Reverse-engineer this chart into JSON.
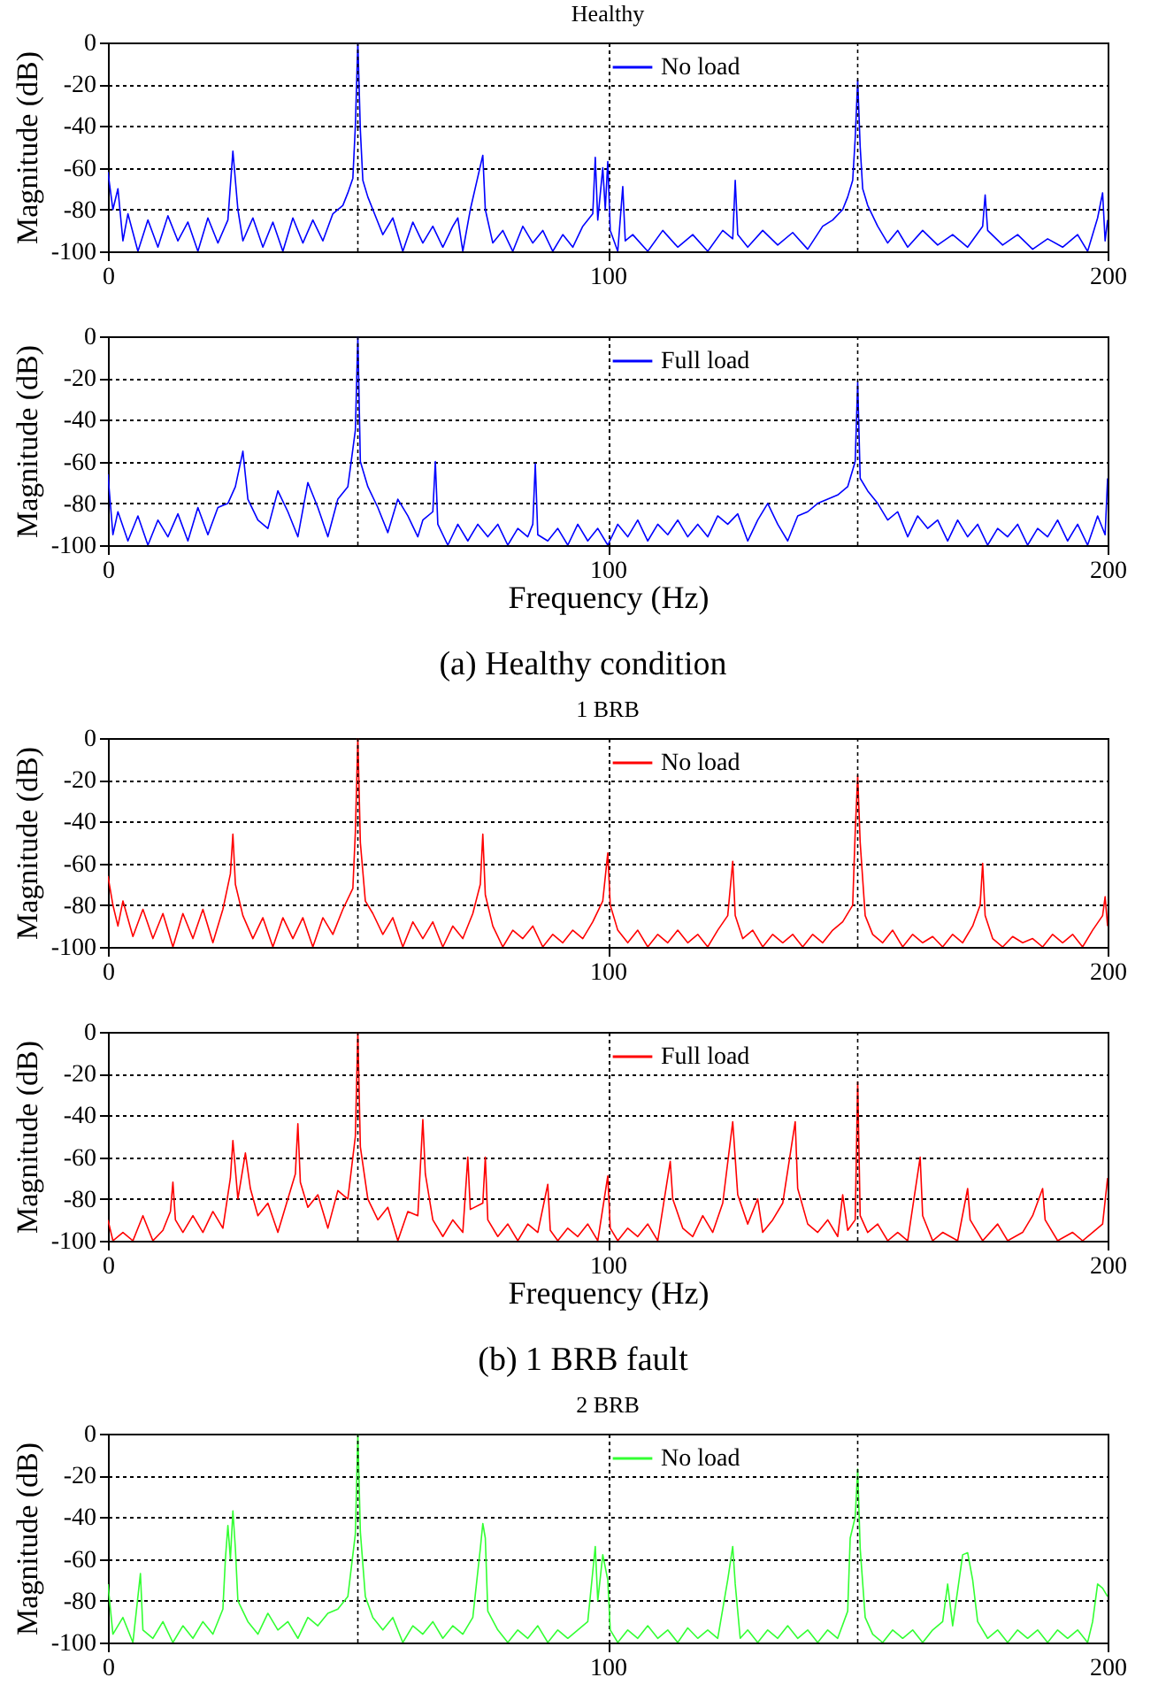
{
  "chart_data": [
    {
      "type": "line",
      "title": "Healthy",
      "ylabel": "Magnitude (dB)",
      "xlim": [
        0,
        200
      ],
      "xticks": [
        0,
        100,
        200
      ],
      "ylim": [
        -100,
        0
      ],
      "yticks": [
        -100,
        -80,
        -60,
        -40,
        -20,
        0
      ],
      "grid": true,
      "legend": "top",
      "ref_lines": [
        {
          "axis": "x",
          "value": 50,
          "line_style": "dotted"
        },
        {
          "axis": "x",
          "value": 150,
          "line_style": "dotted"
        }
      ],
      "series": [
        {
          "name": "No load",
          "color": "#0000ff",
          "x": [
            0,
            1,
            2,
            3,
            4,
            6,
            8,
            10,
            12,
            14,
            16,
            18,
            20,
            22,
            24,
            25,
            26,
            27,
            29,
            31,
            33,
            35,
            37,
            39,
            41,
            43,
            45,
            47,
            48,
            49,
            49.5,
            50,
            50.5,
            51,
            52,
            53,
            55,
            57,
            59,
            61,
            63,
            65,
            67,
            69,
            70,
            71,
            72.5,
            75,
            75.5,
            77,
            79,
            81,
            83,
            85,
            87,
            89,
            91,
            93,
            95,
            97,
            97.5,
            98,
            99,
            99.5,
            100,
            100.5,
            102,
            103,
            103.5,
            105,
            108,
            111,
            114,
            117,
            120,
            123,
            125,
            125.5,
            126,
            128,
            131,
            134,
            137,
            140,
            143,
            145,
            147,
            148,
            149,
            149.5,
            150,
            150.5,
            151,
            152,
            154,
            156,
            158,
            160,
            163,
            166,
            169,
            172,
            175,
            175.5,
            176,
            179,
            182,
            185,
            188,
            191,
            194,
            196,
            198,
            199,
            199.5,
            200
          ],
          "values": [
            -62,
            -80,
            -70,
            -95,
            -82,
            -100,
            -85,
            -98,
            -83,
            -95,
            -86,
            -100,
            -84,
            -96,
            -85,
            -52,
            -80,
            -95,
            -84,
            -98,
            -86,
            -100,
            -84,
            -96,
            -85,
            -95,
            -82,
            -78,
            -72,
            -65,
            -40,
            0,
            -42,
            -66,
            -74,
            -80,
            -92,
            -84,
            -100,
            -86,
            -96,
            -88,
            -98,
            -88,
            -84,
            -100,
            -80,
            -54,
            -80,
            -96,
            -90,
            -100,
            -88,
            -96,
            -90,
            -100,
            -92,
            -98,
            -88,
            -82,
            -55,
            -85,
            -60,
            -80,
            -57,
            -90,
            -100,
            -69,
            -95,
            -92,
            -100,
            -90,
            -98,
            -92,
            -100,
            -90,
            -94,
            -66,
            -92,
            -98,
            -90,
            -97,
            -91,
            -99,
            -88,
            -85,
            -80,
            -74,
            -66,
            -46,
            -18,
            -50,
            -70,
            -78,
            -88,
            -96,
            -90,
            -98,
            -90,
            -97,
            -92,
            -98,
            -88,
            -73,
            -90,
            -97,
            -92,
            -99,
            -94,
            -98,
            -92,
            -100,
            -84,
            -72,
            -95,
            -85
          ]
        }
      ]
    },
    {
      "type": "line",
      "xlabel": "Frequency (Hz)",
      "ylabel": "Magnitude (dB)",
      "xlim": [
        0,
        200
      ],
      "xticks": [
        0,
        100,
        200
      ],
      "ylim": [
        -100,
        0
      ],
      "yticks": [
        -100,
        -80,
        -60,
        -40,
        -20,
        0
      ],
      "grid": true,
      "legend": "top",
      "ref_lines": [
        {
          "axis": "x",
          "value": 50,
          "line_style": "dotted"
        },
        {
          "axis": "x",
          "value": 150,
          "line_style": "dotted"
        }
      ],
      "annotations": [
        "(a) Healthy condition"
      ],
      "series": [
        {
          "name": "Full load",
          "color": "#0000ff",
          "x": [
            0,
            1,
            2,
            4,
            6,
            8,
            10,
            12,
            14,
            16,
            18,
            20,
            22,
            24,
            25.5,
            27,
            28,
            30,
            32,
            34,
            36,
            38,
            40,
            42,
            44,
            46,
            48,
            49.5,
            50,
            50.5,
            52,
            54,
            56,
            58,
            60,
            62,
            63,
            65,
            65.5,
            66,
            68,
            70,
            72,
            74,
            76,
            78,
            80,
            82,
            84,
            85,
            85.5,
            86,
            88,
            90,
            92,
            94,
            96,
            98,
            100,
            102,
            104,
            106,
            108,
            110,
            112,
            114,
            116,
            118,
            120,
            122,
            124,
            126,
            128,
            130,
            132,
            134,
            136,
            138,
            140,
            142,
            144,
            146,
            148,
            149.5,
            150,
            150.5,
            152,
            154,
            156,
            158,
            160,
            162,
            164,
            166,
            168,
            170,
            172,
            174,
            176,
            178,
            180,
            182,
            184,
            186,
            188,
            190,
            192,
            194,
            196,
            198,
            199.5,
            200
          ],
          "values": [
            -66,
            -95,
            -84,
            -98,
            -86,
            -100,
            -88,
            -96,
            -85,
            -98,
            -82,
            -95,
            -82,
            -80,
            -72,
            -55,
            -78,
            -88,
            -92,
            -74,
            -84,
            -96,
            -70,
            -82,
            -96,
            -78,
            -72,
            -45,
            0,
            -60,
            -72,
            -82,
            -94,
            -78,
            -86,
            -96,
            -88,
            -84,
            -60,
            -90,
            -100,
            -90,
            -98,
            -90,
            -96,
            -90,
            -100,
            -92,
            -96,
            -90,
            -61,
            -95,
            -98,
            -92,
            -100,
            -90,
            -98,
            -92,
            -100,
            -90,
            -96,
            -88,
            -98,
            -90,
            -95,
            -88,
            -96,
            -90,
            -96,
            -86,
            -90,
            -85,
            -98,
            -88,
            -80,
            -90,
            -98,
            -86,
            -84,
            -80,
            -78,
            -76,
            -72,
            -60,
            -22,
            -68,
            -74,
            -80,
            -88,
            -84,
            -96,
            -86,
            -92,
            -88,
            -98,
            -88,
            -96,
            -90,
            -100,
            -92,
            -96,
            -90,
            -100,
            -92,
            -96,
            -88,
            -98,
            -90,
            -100,
            -86,
            -95,
            -68
          ]
        }
      ]
    },
    {
      "type": "line",
      "title": "1 BRB",
      "ylabel": "Magnitude (dB)",
      "xlim": [
        0,
        200
      ],
      "xticks": [
        0,
        100,
        200
      ],
      "ylim": [
        -100,
        0
      ],
      "yticks": [
        -100,
        -80,
        -60,
        -40,
        -20,
        0
      ],
      "grid": true,
      "legend": "top",
      "ref_lines": [
        {
          "axis": "x",
          "value": 50,
          "line_style": "dotted"
        },
        {
          "axis": "x",
          "value": 150,
          "line_style": "dotted"
        }
      ],
      "series": [
        {
          "name": "No load",
          "color": "#ff0000",
          "x": [
            0,
            1,
            2,
            3,
            5,
            7,
            9,
            11,
            13,
            15,
            17,
            19,
            21,
            23,
            24.5,
            25,
            25.5,
            27,
            29,
            31,
            33,
            35,
            37,
            39,
            41,
            43,
            45,
            47,
            49,
            49.5,
            50,
            50.5,
            51.5,
            53,
            55,
            57,
            59,
            61,
            63,
            65,
            67,
            69,
            71,
            73,
            74.5,
            75,
            75.5,
            77,
            79,
            81,
            83,
            85,
            87,
            89,
            91,
            93,
            95,
            97,
            99,
            100,
            100.5,
            102,
            104,
            106,
            108,
            110,
            112,
            114,
            116,
            118,
            120,
            122,
            124,
            125,
            125.5,
            127,
            129,
            131,
            133,
            135,
            137,
            139,
            141,
            143,
            145,
            147,
            149,
            149.5,
            150,
            150.5,
            151.5,
            153,
            155,
            157,
            159,
            161,
            163,
            165,
            167,
            169,
            171,
            173,
            174.5,
            175,
            175.5,
            177,
            179,
            181,
            183,
            185,
            187,
            189,
            191,
            193,
            195,
            197,
            199,
            199.5,
            200
          ],
          "values": [
            -66,
            -80,
            -90,
            -78,
            -95,
            -82,
            -96,
            -84,
            -100,
            -84,
            -96,
            -82,
            -98,
            -82,
            -65,
            -46,
            -70,
            -85,
            -96,
            -86,
            -100,
            -86,
            -96,
            -86,
            -100,
            -86,
            -94,
            -82,
            -72,
            -45,
            0,
            -50,
            -78,
            -84,
            -94,
            -86,
            -100,
            -88,
            -96,
            -88,
            -100,
            -90,
            -96,
            -84,
            -70,
            -46,
            -75,
            -90,
            -100,
            -92,
            -96,
            -90,
            -100,
            -94,
            -98,
            -92,
            -96,
            -88,
            -78,
            -55,
            -80,
            -92,
            -98,
            -92,
            -100,
            -94,
            -98,
            -92,
            -98,
            -94,
            -100,
            -92,
            -85,
            -59,
            -85,
            -96,
            -92,
            -100,
            -94,
            -98,
            -94,
            -100,
            -94,
            -98,
            -92,
            -88,
            -80,
            -45,
            -18,
            -50,
            -85,
            -94,
            -98,
            -92,
            -100,
            -94,
            -98,
            -95,
            -100,
            -94,
            -98,
            -90,
            -80,
            -60,
            -85,
            -96,
            -100,
            -95,
            -98,
            -96,
            -100,
            -94,
            -98,
            -94,
            -100,
            -92,
            -85,
            -76,
            -90
          ]
        }
      ]
    },
    {
      "type": "line",
      "xlabel": "Frequency (Hz)",
      "ylabel": "Magnitude (dB)",
      "xlim": [
        0,
        200
      ],
      "xticks": [
        0,
        100,
        200
      ],
      "ylim": [
        -100,
        0
      ],
      "yticks": [
        -100,
        -80,
        -60,
        -40,
        -20,
        0
      ],
      "grid": true,
      "legend": "top",
      "ref_lines": [
        {
          "axis": "x",
          "value": 50,
          "line_style": "dotted"
        },
        {
          "axis": "x",
          "value": 150,
          "line_style": "dotted"
        }
      ],
      "annotations": [
        "(b) 1 BRB fault"
      ],
      "series": [
        {
          "name": "Full load",
          "color": "#ff0000",
          "x": [
            0,
            1,
            3,
            5,
            7,
            9,
            11,
            12.5,
            13,
            13.5,
            15,
            17,
            19,
            21,
            23,
            24.5,
            25,
            26,
            27.5,
            28.5,
            30,
            32,
            34,
            36,
            37.5,
            38,
            38.5,
            40,
            42,
            44,
            46,
            48,
            49.5,
            50,
            50.5,
            52,
            54,
            56,
            58,
            60,
            62,
            63,
            63.5,
            65,
            67,
            69,
            71,
            72,
            72.5,
            75,
            75.5,
            76,
            78,
            80,
            82,
            84,
            86,
            88,
            88.5,
            90,
            92,
            94,
            96,
            98,
            100,
            100.5,
            102,
            104,
            106,
            108,
            110,
            112.5,
            113,
            115,
            117,
            119,
            121,
            123,
            125,
            126,
            128,
            130,
            131,
            133,
            135,
            137.5,
            138,
            140,
            142,
            144,
            146,
            147,
            148,
            149.5,
            150,
            150.5,
            152,
            154,
            156,
            158,
            160,
            162.5,
            163,
            165,
            167,
            170,
            172,
            172.5,
            175,
            178,
            180,
            183,
            185,
            187,
            187.5,
            190,
            193,
            195,
            197,
            199,
            200
          ],
          "values": [
            -90,
            -100,
            -96,
            -100,
            -88,
            -100,
            -95,
            -86,
            -72,
            -90,
            -96,
            -88,
            -96,
            -86,
            -94,
            -70,
            -52,
            -80,
            -58,
            -75,
            -88,
            -82,
            -96,
            -80,
            -68,
            -44,
            -72,
            -84,
            -78,
            -94,
            -76,
            -80,
            -50,
            0,
            -55,
            -80,
            -90,
            -84,
            -100,
            -86,
            -88,
            -42,
            -68,
            -90,
            -98,
            -90,
            -96,
            -60,
            -85,
            -82,
            -60,
            -90,
            -98,
            -92,
            -100,
            -92,
            -96,
            -73,
            -95,
            -100,
            -94,
            -98,
            -92,
            -100,
            -69,
            -94,
            -100,
            -94,
            -98,
            -92,
            -100,
            -62,
            -80,
            -94,
            -98,
            -88,
            -96,
            -82,
            -43,
            -78,
            -92,
            -80,
            -96,
            -90,
            -82,
            -43,
            -75,
            -92,
            -96,
            -90,
            -98,
            -78,
            -95,
            -90,
            -24,
            -88,
            -96,
            -92,
            -100,
            -96,
            -100,
            -60,
            -88,
            -100,
            -96,
            -100,
            -75,
            -90,
            -100,
            -92,
            -100,
            -96,
            -88,
            -75,
            -90,
            -100,
            -96,
            -100,
            -96,
            -92,
            -70
          ]
        }
      ]
    },
    {
      "type": "line",
      "title": "2 BRB",
      "ylabel": "Magnitude (dB)",
      "xlim": [
        0,
        200
      ],
      "xticks": [
        0,
        100,
        200
      ],
      "ylim": [
        -100,
        0
      ],
      "yticks": [
        -100,
        -80,
        -60,
        -40,
        -20,
        0
      ],
      "grid": true,
      "legend": "top",
      "ref_lines": [
        {
          "axis": "x",
          "value": 50,
          "line_style": "dotted"
        },
        {
          "axis": "x",
          "value": 150,
          "line_style": "dotted"
        }
      ],
      "series": [
        {
          "name": "No load",
          "color": "#33ff33",
          "x": [
            0,
            1,
            3,
            5,
            6.5,
            7,
            9,
            11,
            13,
            15,
            17,
            19,
            21,
            23,
            23.5,
            24,
            24.5,
            25,
            25.5,
            26,
            28,
            30,
            32,
            34,
            36,
            38,
            40,
            42,
            44,
            46,
            48,
            49.5,
            50,
            50.5,
            51.5,
            53,
            55,
            57,
            59,
            61,
            63,
            65,
            67,
            69,
            71,
            73,
            74.5,
            75,
            75.5,
            76,
            78,
            80,
            82,
            84,
            86,
            88,
            90,
            92,
            94,
            96,
            97.5,
            98,
            99,
            100,
            100.5,
            102,
            104,
            106,
            108,
            110,
            112,
            114,
            116,
            118,
            120,
            122,
            124,
            125,
            125.5,
            126.5,
            128,
            130,
            132,
            134,
            136,
            138,
            140,
            142,
            144,
            146,
            148,
            148.5,
            149.5,
            150,
            150.5,
            151.5,
            153,
            155,
            157,
            159,
            161,
            163,
            165,
            167,
            168,
            169,
            171,
            172,
            173,
            174,
            176,
            178,
            180,
            182,
            184,
            186,
            188,
            190,
            192,
            194,
            196,
            197,
            198,
            199,
            200
          ],
          "values": [
            -72,
            -96,
            -88,
            -100,
            -67,
            -94,
            -98,
            -90,
            -100,
            -92,
            -98,
            -90,
            -96,
            -84,
            -60,
            -44,
            -60,
            -37,
            -55,
            -80,
            -90,
            -96,
            -86,
            -94,
            -90,
            -98,
            -88,
            -92,
            -86,
            -84,
            -78,
            -48,
            0,
            -47,
            -78,
            -88,
            -94,
            -88,
            -100,
            -92,
            -96,
            -90,
            -98,
            -92,
            -96,
            -88,
            -55,
            -43,
            -50,
            -85,
            -94,
            -100,
            -94,
            -98,
            -92,
            -100,
            -94,
            -98,
            -94,
            -90,
            -54,
            -80,
            -58,
            -70,
            -94,
            -100,
            -94,
            -98,
            -92,
            -98,
            -94,
            -100,
            -93,
            -98,
            -94,
            -98,
            -70,
            -54,
            -72,
            -98,
            -94,
            -100,
            -94,
            -98,
            -92,
            -98,
            -94,
            -100,
            -94,
            -98,
            -85,
            -50,
            -40,
            -17,
            -55,
            -88,
            -96,
            -100,
            -94,
            -98,
            -94,
            -100,
            -94,
            -90,
            -72,
            -92,
            -58,
            -57,
            -70,
            -90,
            -98,
            -94,
            -100,
            -94,
            -98,
            -94,
            -100,
            -94,
            -98,
            -94,
            -100,
            -90,
            -72,
            -74,
            -78
          ]
        }
      ]
    }
  ]
}
